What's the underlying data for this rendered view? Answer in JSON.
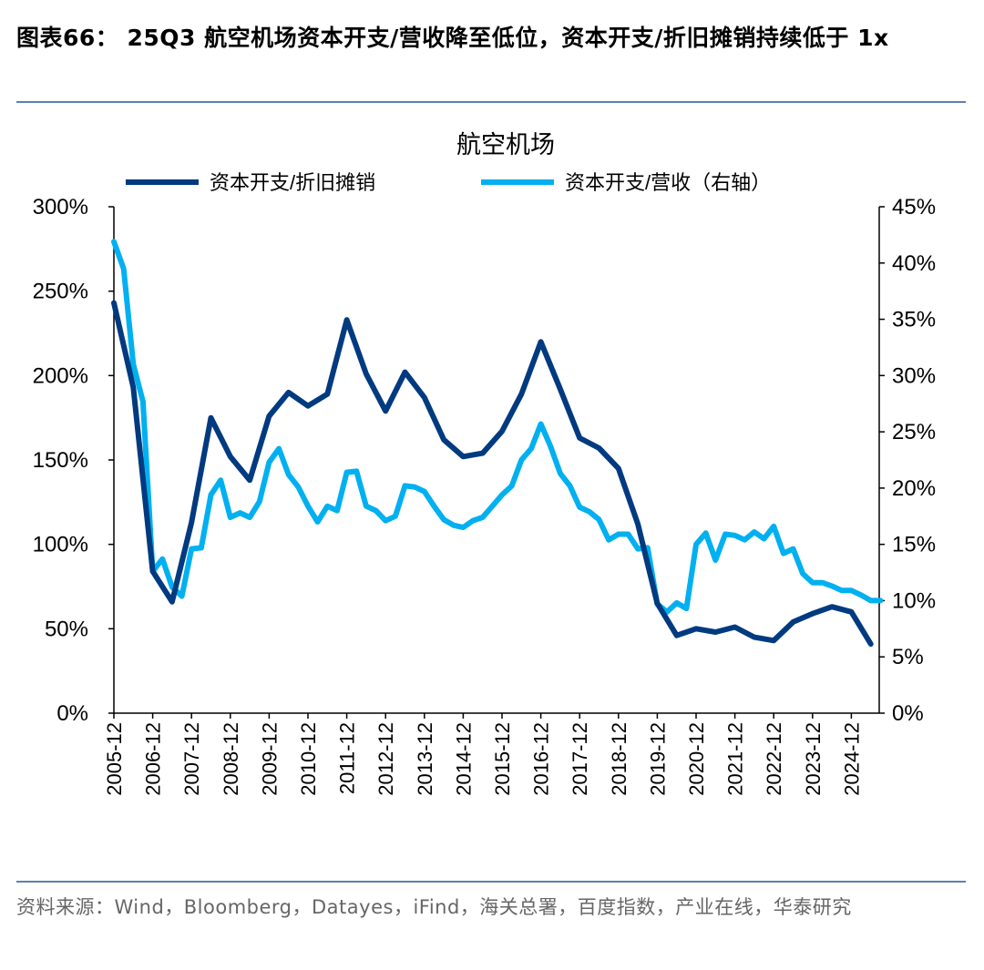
{
  "header": {
    "title": "图表66： 25Q3 航空机场资本开支/营收降至低位，资本开支/折旧摊销持续低于 1x"
  },
  "footer": {
    "source": "资料来源：Wind，Bloomberg，Datayes，iFind，海关总署，百度指数，产业在线，华泰研究"
  },
  "colors": {
    "dark": "#003a80",
    "light": "#00b0f0",
    "rule": "#5b7fb4"
  },
  "chart_data": {
    "type": "line",
    "title": "航空机场",
    "xlabel": "",
    "x_tick_labels": [
      "2005-12",
      "2006-12",
      "2007-12",
      "2008-12",
      "2009-12",
      "2010-12",
      "2011-12",
      "2012-12",
      "2013-12",
      "2014-12",
      "2015-12",
      "2016-12",
      "2017-12",
      "2018-12",
      "2019-12",
      "2020-12",
      "2021-12",
      "2022-12",
      "2023-12",
      "2024-12"
    ],
    "y_left": {
      "label": "",
      "ylim": [
        0,
        300
      ],
      "ticks": [
        "0%",
        "50%",
        "100%",
        "150%",
        "200%",
        "250%",
        "300%"
      ]
    },
    "y_right": {
      "label": "",
      "ylim": [
        0,
        45
      ],
      "ticks": [
        "0%",
        "5%",
        "10%",
        "15%",
        "20%",
        "25%",
        "30%",
        "35%",
        "40%",
        "45%"
      ]
    },
    "legend_position": "top",
    "series": [
      {
        "name": "资本开支/折旧摊销",
        "axis": "left",
        "start": "2005-12",
        "frequency": "semiannual",
        "unit": "%",
        "values": [
          243,
          193,
          84,
          66,
          113,
          175,
          152,
          138,
          176,
          190,
          182,
          189,
          233,
          201,
          179,
          202,
          187,
          162,
          152,
          154,
          167,
          189,
          220,
          192,
          163,
          157,
          145,
          112,
          65,
          46,
          50,
          48,
          51,
          45,
          43,
          54,
          59,
          63,
          60,
          41
        ]
      },
      {
        "name": "资本开支/营收（右轴）",
        "axis": "right",
        "start": "2005-12",
        "frequency": "quarterly",
        "unit": "%",
        "values": [
          41.9,
          39.5,
          31.0,
          27.7,
          12.6,
          13.7,
          11.2,
          10.4,
          14.6,
          14.7,
          19.4,
          20.7,
          17.4,
          17.8,
          17.4,
          18.8,
          22.3,
          23.5,
          21.2,
          20.1,
          18.4,
          17.0,
          18.4,
          18.0,
          21.4,
          21.5,
          18.4,
          18.0,
          17.1,
          17.5,
          20.2,
          20.1,
          19.7,
          18.4,
          17.2,
          16.7,
          16.5,
          17.1,
          17.4,
          18.4,
          19.4,
          20.2,
          22.5,
          23.5,
          25.7,
          23.7,
          21.3,
          20.2,
          18.3,
          17.9,
          17.2,
          15.4,
          15.9,
          15.9,
          14.6,
          14.7,
          9.7,
          9.0,
          9.8,
          9.3,
          15.0,
          16.0,
          13.6,
          15.9,
          15.8,
          15.4,
          16.1,
          15.5,
          16.6,
          14.2,
          14.6,
          12.4,
          11.6,
          11.6,
          11.3,
          10.9,
          10.9,
          10.5,
          10.0,
          10.0
        ]
      }
    ]
  }
}
